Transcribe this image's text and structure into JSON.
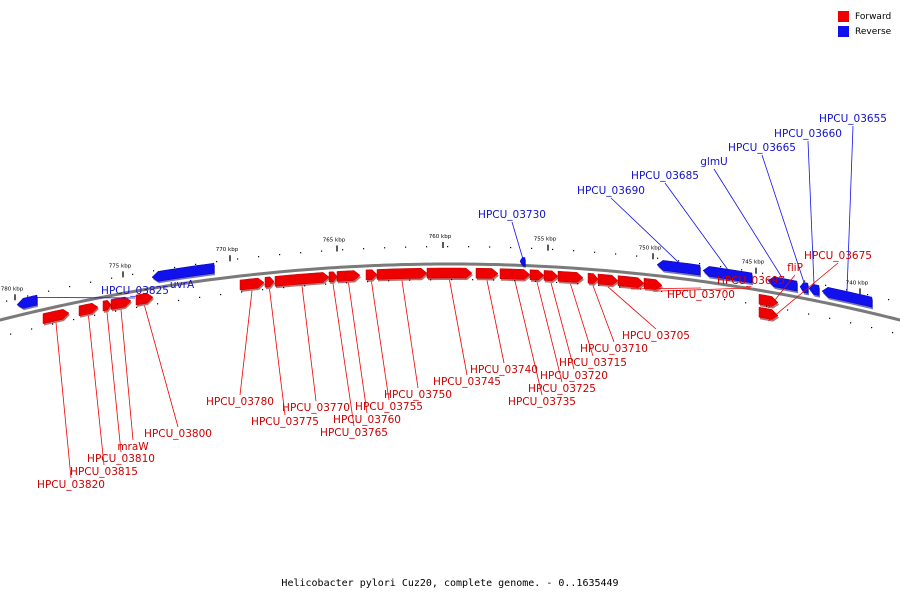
{
  "legend": {
    "forward_label": "Forward",
    "reverse_label": "Reverse",
    "forward_color": "#ee0000",
    "reverse_color": "#1111ee"
  },
  "caption": "Helicobacter pylori Cuz20, complete genome. - 0..1635449",
  "ticks": [
    {
      "label": "780 kbp"
    },
    {
      "label": "775 kbp"
    },
    {
      "label": "770 kbp"
    },
    {
      "label": "765 kbp"
    },
    {
      "label": "760 kbp"
    },
    {
      "label": "755 kbp"
    },
    {
      "label": "750 kbp"
    },
    {
      "label": "745 kbp"
    },
    {
      "label": "740 kbp"
    }
  ],
  "genes": [
    {
      "name": "HPCU_03655",
      "strand": "reverse"
    },
    {
      "name": "HPCU_03660",
      "strand": "reverse"
    },
    {
      "name": "HPCU_03665",
      "strand": "reverse"
    },
    {
      "name": "glmU",
      "strand": "reverse"
    },
    {
      "name": "HPCU_03685",
      "strand": "reverse"
    },
    {
      "name": "HPCU_03690",
      "strand": "reverse"
    },
    {
      "name": "HPCU_03730",
      "strand": "reverse"
    },
    {
      "name": "uvrA",
      "strand": "reverse"
    },
    {
      "name": "HPCU_03825",
      "strand": "reverse"
    },
    {
      "name": "HPCU_03675",
      "strand": "forward"
    },
    {
      "name": "fliP",
      "strand": "forward"
    },
    {
      "name": "HPCU_03695",
      "strand": "forward"
    },
    {
      "name": "HPCU_03700",
      "strand": "forward"
    },
    {
      "name": "HPCU_03705",
      "strand": "forward"
    },
    {
      "name": "HPCU_03710",
      "strand": "forward"
    },
    {
      "name": "HPCU_03715",
      "strand": "forward"
    },
    {
      "name": "HPCU_03720",
      "strand": "forward"
    },
    {
      "name": "HPCU_03725",
      "strand": "forward"
    },
    {
      "name": "HPCU_03735",
      "strand": "forward"
    },
    {
      "name": "HPCU_03740",
      "strand": "forward"
    },
    {
      "name": "HPCU_03745",
      "strand": "forward"
    },
    {
      "name": "HPCU_03750",
      "strand": "forward"
    },
    {
      "name": "HPCU_03755",
      "strand": "forward"
    },
    {
      "name": "HPCU_03760",
      "strand": "forward"
    },
    {
      "name": "HPCU_03765",
      "strand": "forward"
    },
    {
      "name": "HPCU_03770",
      "strand": "forward"
    },
    {
      "name": "HPCU_03775",
      "strand": "forward"
    },
    {
      "name": "HPCU_03780",
      "strand": "forward"
    },
    {
      "name": "HPCU_03800",
      "strand": "forward"
    },
    {
      "name": "mraW",
      "strand": "forward"
    },
    {
      "name": "HPCU_03810",
      "strand": "forward"
    },
    {
      "name": "HPCU_03815",
      "strand": "forward"
    },
    {
      "name": "HPCU_03820",
      "strand": "forward"
    }
  ]
}
